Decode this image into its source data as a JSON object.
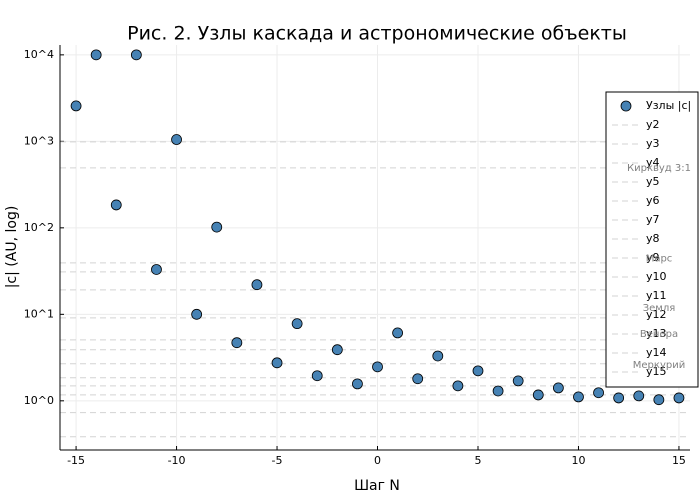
{
  "chart_data": {
    "type": "scatter",
    "title": "Рис. 2. Узлы каскада и астрономические объекты",
    "x_label": "Шаг N",
    "y_label": "|c| (AU, log)",
    "x": [
      -15,
      -14,
      -13,
      -12,
      -11,
      -10,
      -9,
      -8,
      -7,
      -6,
      -5,
      -4,
      -3,
      -2,
      -1,
      0,
      1,
      2,
      3,
      4,
      5,
      6,
      7,
      8,
      9,
      10,
      11,
      12,
      13,
      14,
      15
    ],
    "series": [
      {
        "name": "Узлы |c|",
        "color": "#4682b4",
        "values": [
          2570,
          10000,
          184,
          10000,
          33,
          1050,
          10,
          102,
          4.7,
          22,
          2.75,
          7.8,
          1.95,
          3.9,
          1.57,
          2.47,
          6.1,
          1.8,
          3.3,
          1.49,
          2.22,
          1.3,
          1.7,
          1.17,
          1.41,
          1.11,
          1.24,
          1.08,
          1.14,
          1.03,
          1.08
        ]
      }
    ],
    "reference_lines": [
      {
        "name": "y2",
        "value": 986
      },
      {
        "name": "y3",
        "value": 494
      },
      {
        "name": "y4",
        "value": 39.4
      },
      {
        "name": "y5",
        "value": 31
      },
      {
        "name": "y6",
        "value": 19.2
      },
      {
        "name": "y7",
        "value": 9.1
      },
      {
        "name": "y8",
        "value": 5.07
      },
      {
        "name": "y9",
        "value": 3.89
      },
      {
        "name": "y10",
        "value": 2.68
      },
      {
        "name": "y11",
        "value": 1.85
      },
      {
        "name": "y12",
        "value": 1.49
      },
      {
        "name": "y13",
        "value": 1.17
      },
      {
        "name": "y14",
        "value": 0.73
      },
      {
        "name": "y15",
        "value": 0.384
      }
    ],
    "reference_color": "#d3d3d3",
    "annotations": [
      {
        "text": "Кирквуд 3:1",
        "y": 494
      },
      {
        "text": "Марс",
        "y": 44
      },
      {
        "text": "Земля",
        "y": 11.9
      },
      {
        "text": "Венера",
        "y": 5.95
      },
      {
        "text": "Меркурий",
        "y": 2.6
      }
    ],
    "xlim": [
      -15.8,
      15.55
    ],
    "xticks": [
      -15,
      -10,
      -5,
      0,
      5,
      10,
      15
    ],
    "ylim": [
      0.27,
      13000
    ],
    "log_y": true,
    "yticks": [
      {
        "value": 1,
        "label": "10^0"
      },
      {
        "value": 10,
        "label": "10^1"
      },
      {
        "value": 100,
        "label": "10^2"
      },
      {
        "value": 1000,
        "label": "10^3"
      },
      {
        "value": 10000,
        "label": "10^4"
      }
    ],
    "grid": true,
    "legend_position": "right"
  }
}
